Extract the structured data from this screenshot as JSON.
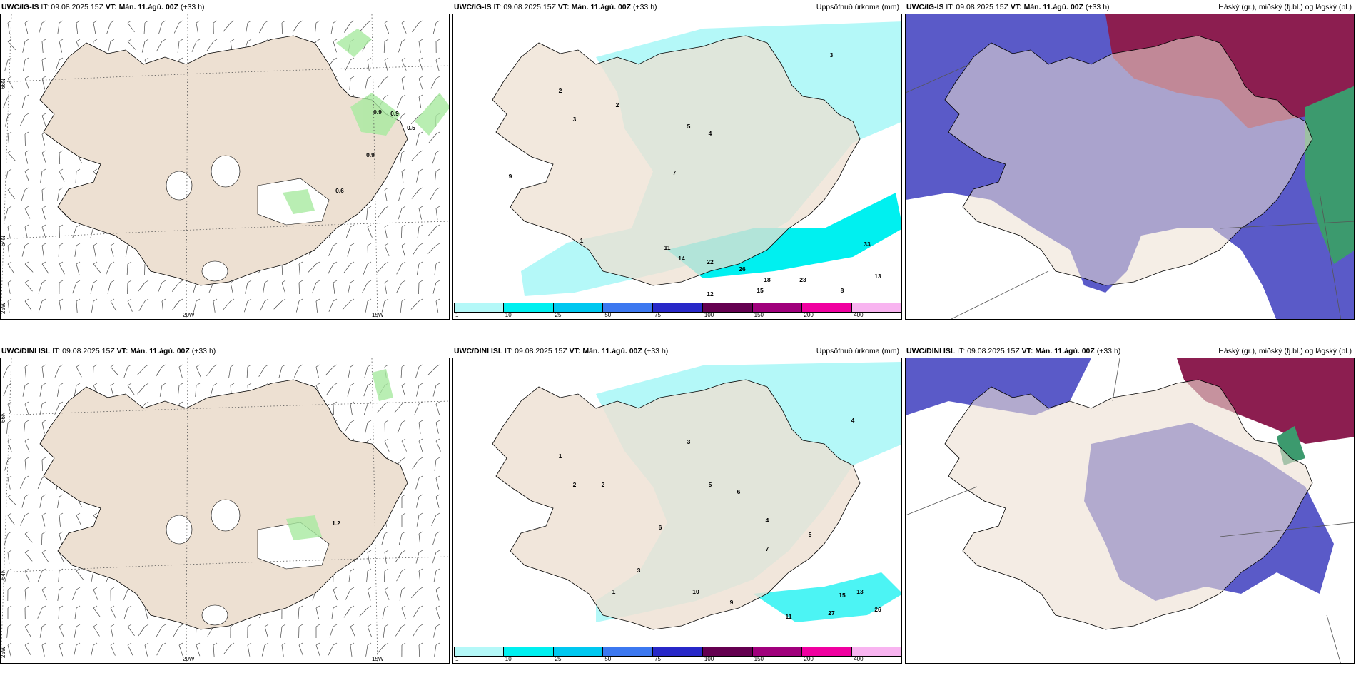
{
  "panels": [
    {
      "model": "UWC/IG-IS",
      "it": "IT: 09.08.2025 15Z",
      "vt": "VT: Mán. 11.ágú. 00Z",
      "lead": "(+33 h)",
      "right": ""
    },
    {
      "model": "UWC/IG-IS",
      "it": "IT: 09.08.2025 15Z",
      "vt": "VT: Mán. 11.ágú. 00Z",
      "lead": "(+33 h)",
      "right": "Uppsöfnuð úrkoma (mm)"
    },
    {
      "model": "UWC/IG-IS",
      "it": "IT: 09.08.2025 15Z",
      "vt": "VT: Mán. 11.ágú. 00Z",
      "lead": "(+33 h)",
      "right": "Háský (gr.), miðský (fj.bl.) og lágský (bl.)"
    },
    {
      "model": "UWC/DINI ISL",
      "it": "IT: 09.08.2025 15Z",
      "vt": "VT: Mán. 11.ágú. 00Z",
      "lead": "(+33 h)",
      "right": ""
    },
    {
      "model": "UWC/DINI ISL",
      "it": "IT: 09.08.2025 15Z",
      "vt": "VT: Mán. 11.ágú. 00Z",
      "lead": "(+33 h)",
      "right": "Uppsöfnuð úrkoma (mm)"
    },
    {
      "model": "UWC/DINI ISL",
      "it": "IT: 09.08.2025 15Z",
      "vt": "VT: Mán. 11.ágú. 00Z",
      "lead": "(+33 h)",
      "right": "Háský (gr.), miðský (fj.bl.) og lágský (bl.)"
    }
  ],
  "grid_labels": {
    "lat66": "66N",
    "lat64": "64N",
    "lon25": "25W",
    "lon20": "20W",
    "lon15": "15W"
  },
  "wind_values_top": [
    "0.9",
    "0.9",
    "0.5",
    "0.9",
    "0.6"
  ],
  "wind_values_bottom": [
    "1.2"
  ],
  "colorbar": {
    "ticks": [
      "1",
      "10",
      "25",
      "50",
      "75",
      "100",
      "150",
      "200",
      "400"
    ],
    "colors": [
      "#b4f8f8",
      "#00f0f0",
      "#00c8f0",
      "#3c78f0",
      "#2828c8",
      "#640050",
      "#a0007c",
      "#f000a0",
      "#f8b4f0"
    ]
  },
  "precip_top": [
    "2",
    "3",
    "5",
    "7",
    "9",
    "1",
    "2",
    "4",
    "14",
    "22",
    "26",
    "18",
    "23",
    "33",
    "13",
    "15",
    "12",
    "8",
    "3",
    "11"
  ],
  "precip_bottom": [
    "1",
    "2",
    "3",
    "5",
    "6",
    "4",
    "13",
    "27",
    "26",
    "15",
    "10",
    "9",
    "11",
    "7",
    "4",
    "2",
    "5",
    "3",
    "6",
    "1"
  ],
  "colors": {
    "land": "#ede0d2",
    "ocean": "#ffffff",
    "precip_light": "#b4f8f8",
    "precip_mid": "#00f0f0",
    "cloud_mid": "#5a5ac8",
    "cloud_high": "#8c1e50",
    "cloud_low": "#3c9a6e"
  }
}
